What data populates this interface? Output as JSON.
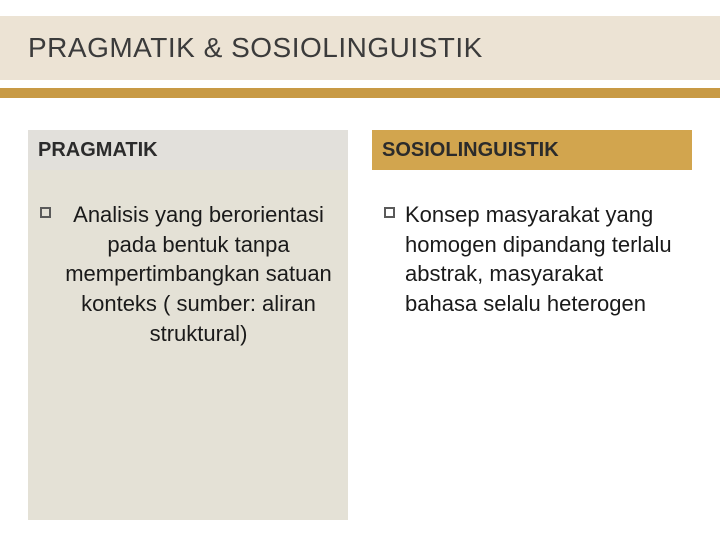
{
  "slide": {
    "title": "PRAGMATIK & SOSIOLINGUISTIK",
    "title_band_bg": "#ece3d4",
    "title_color": "#3b3b3b",
    "title_fontsize": 28,
    "accent_bar_color": "#c89a45",
    "background": "#ffffff"
  },
  "columns": {
    "left": {
      "header": "PRAGMATIK",
      "header_bg": "#e2e0db",
      "body_bg": "#e4e1d6",
      "bullet_text": "Analisis yang berorientasi pada bentuk tanpa mempertimbangkan satuan konteks ( sumber: aliran struktural)",
      "text_align": "center"
    },
    "right": {
      "header": "SOSIOLINGUISTIK",
      "header_bg": "#d2a54e",
      "body_bg": "transparent",
      "bullet_text": "Konsep masyarakat yang homogen dipandang terlalu abstrak, masyarakat bahasa selalu heterogen",
      "text_align": "left"
    }
  },
  "typography": {
    "header_fontsize": 20,
    "body_fontsize": 22,
    "body_lineheight": 1.35,
    "bullet_border_color": "#5a5a5a",
    "bullet_size": 11
  }
}
